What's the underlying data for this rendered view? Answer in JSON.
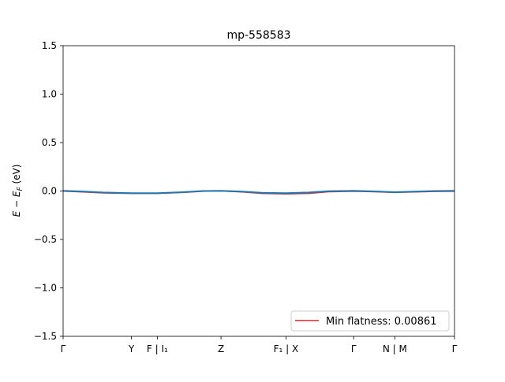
{
  "chart_data": {
    "type": "line",
    "title": "mp-558583",
    "ylabel_parts": {
      "pre": "E − E",
      "sub": "F",
      "post": " (eV)"
    },
    "ylim": [
      -1.5,
      1.5
    ],
    "yticks": [
      -1.5,
      -1.0,
      -0.5,
      0.0,
      0.5,
      1.0,
      1.5
    ],
    "ytick_labels": [
      "−1.5",
      "−1.0",
      "−0.5",
      "0.0",
      "0.5",
      "1.0",
      "1.5"
    ],
    "xlim": [
      0,
      5.9
    ],
    "xticks": [
      {
        "x": 0.0,
        "label": "Γ"
      },
      {
        "x": 1.03,
        "label": "Y"
      },
      {
        "x": 1.42,
        "label": "F | I₁"
      },
      {
        "x": 2.38,
        "label": "Z"
      },
      {
        "x": 3.36,
        "label": "F₁ | X"
      },
      {
        "x": 4.38,
        "label": "Γ"
      },
      {
        "x": 5.0,
        "label": "N | M"
      },
      {
        "x": 5.9,
        "label": "Γ"
      }
    ],
    "grid": false,
    "legend": {
      "position": "lower-right",
      "entries": [
        {
          "label": "Min flatness: 0.00861",
          "color": "#d62728"
        }
      ]
    },
    "series": [
      {
        "name": "Min flatness: 0.00861",
        "color": "#d62728",
        "x": [
          0,
          0.3,
          0.6,
          1.03,
          1.42,
          1.8,
          2.1,
          2.38,
          2.7,
          3.0,
          3.36,
          3.7,
          4.0,
          4.38,
          4.7,
          5.0,
          5.3,
          5.6,
          5.9
        ],
        "y": [
          -0.002,
          -0.01,
          -0.02,
          -0.025,
          -0.025,
          -0.015,
          -0.003,
          0.0,
          -0.01,
          -0.025,
          -0.03,
          -0.025,
          -0.008,
          -0.003,
          -0.008,
          -0.015,
          -0.01,
          -0.005,
          -0.003
        ]
      },
      {
        "color": "#1f77b4",
        "x": [
          0,
          0.3,
          0.6,
          1.03,
          1.42,
          1.8,
          2.1,
          2.38,
          2.7,
          3.0,
          3.36,
          3.7,
          4.0,
          4.38,
          4.7,
          5.0,
          5.3,
          5.6,
          5.9
        ],
        "y": [
          0.002,
          -0.005,
          -0.015,
          -0.022,
          -0.022,
          -0.012,
          0.0,
          0.002,
          -0.006,
          -0.018,
          -0.022,
          -0.015,
          -0.002,
          0.002,
          -0.004,
          -0.012,
          -0.006,
          0.0,
          0.002
        ]
      }
    ]
  }
}
